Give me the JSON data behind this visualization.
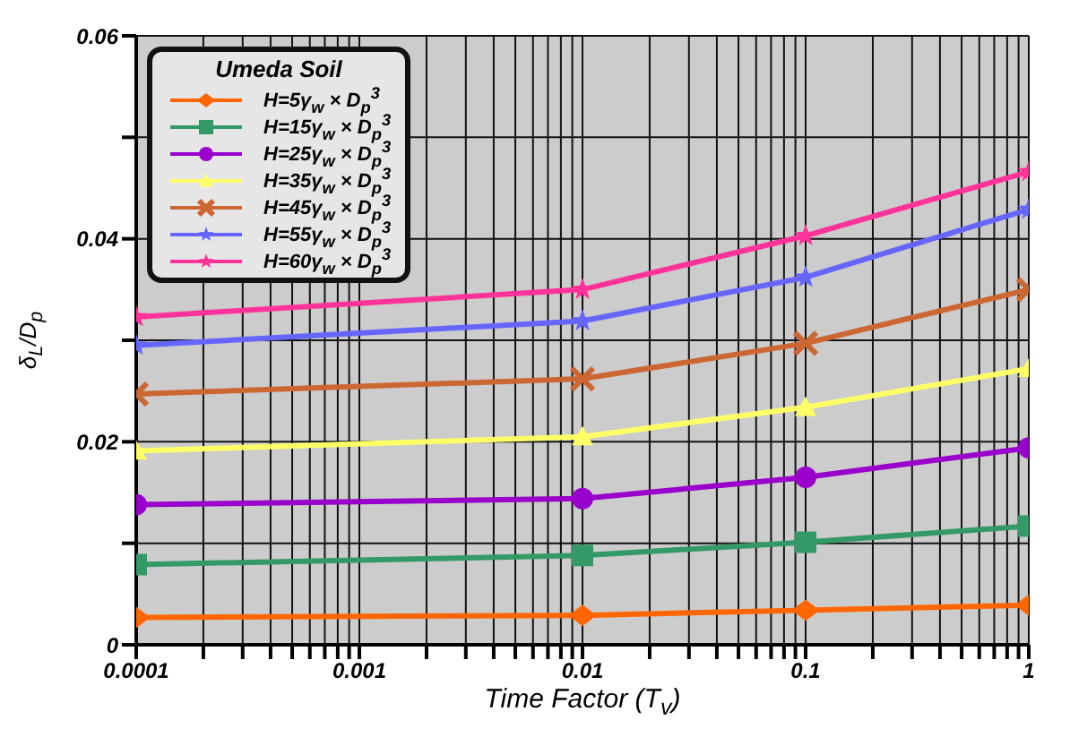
{
  "chart_data": {
    "type": "line",
    "xlabel": "Time Factor (T$_{v}$)",
    "ylabel": "δ$_{L}$/D$_{p}$",
    "legend_title": "Umeda Soil",
    "log": "x",
    "grid": true,
    "legend": "top left",
    "x": [
      0.0001,
      0.01,
      0.1,
      1
    ],
    "xlim": [
      0.0001,
      1
    ],
    "xticks": [
      {
        "value": 0.0001,
        "label": "0.0001"
      },
      {
        "value": 0.0002,
        "label": null
      },
      {
        "value": 0.0003,
        "label": null
      },
      {
        "value": 0.0004,
        "label": null
      },
      {
        "value": 0.0005,
        "label": null
      },
      {
        "value": 0.0006,
        "label": null
      },
      {
        "value": 0.0007,
        "label": null
      },
      {
        "value": 0.0008,
        "label": null
      },
      {
        "value": 0.0009,
        "label": null
      },
      {
        "value": 0.001,
        "label": "0.001"
      },
      {
        "value": 0.002,
        "label": null
      },
      {
        "value": 0.003,
        "label": null
      },
      {
        "value": 0.004,
        "label": null
      },
      {
        "value": 0.005,
        "label": null
      },
      {
        "value": 0.006,
        "label": null
      },
      {
        "value": 0.007,
        "label": null
      },
      {
        "value": 0.008,
        "label": null
      },
      {
        "value": 0.009,
        "label": null
      },
      {
        "value": 0.01,
        "label": "0.01"
      },
      {
        "value": 0.02,
        "label": null
      },
      {
        "value": 0.03,
        "label": null
      },
      {
        "value": 0.04,
        "label": null
      },
      {
        "value": 0.05,
        "label": null
      },
      {
        "value": 0.06,
        "label": null
      },
      {
        "value": 0.07,
        "label": null
      },
      {
        "value": 0.08,
        "label": null
      },
      {
        "value": 0.09,
        "label": null
      },
      {
        "value": 0.1,
        "label": "0.1"
      },
      {
        "value": 0.2,
        "label": null
      },
      {
        "value": 0.3,
        "label": null
      },
      {
        "value": 0.4,
        "label": null
      },
      {
        "value": 0.5,
        "label": null
      },
      {
        "value": 0.6,
        "label": null
      },
      {
        "value": 0.7,
        "label": null
      },
      {
        "value": 0.8,
        "label": null
      },
      {
        "value": 0.9,
        "label": null
      },
      {
        "value": 1,
        "label": "1"
      }
    ],
    "ylim": [
      0,
      0.06
    ],
    "yticks": [
      0,
      {
        "value": 0.01,
        "label": null
      },
      0.02,
      {
        "value": 0.03,
        "label": null
      },
      0.04,
      {
        "value": 0.05,
        "label": null
      },
      0.06
    ],
    "series": [
      {
        "name": "H=5γ$_{w}$ × D$_{p}$$^{3}$",
        "color": "#ff6600",
        "marker": "diamond",
        "values": [
          0.0027,
          0.0029,
          0.0034,
          0.0039
        ]
      },
      {
        "name": "H=15γ$_{w}$ × D$_{p}$$^{3}$",
        "color": "#339966",
        "marker": "square",
        "values": [
          0.0079,
          0.0088,
          0.0101,
          0.0117
        ]
      },
      {
        "name": "H=25γ$_{w}$ × D$_{p}$$^{3}$",
        "color": "#9900cc",
        "marker": "circle",
        "values": [
          0.0138,
          0.0144,
          0.0165,
          0.0194
        ]
      },
      {
        "name": "H=35γ$_{w}$ × D$_{p}$$^{3}$",
        "color": "#ffff66",
        "marker": "triangle",
        "values": [
          0.0191,
          0.0205,
          0.0234,
          0.0272
        ]
      },
      {
        "name": "H=45γ$_{w}$ × D$_{p}$$^{3}$",
        "color": "#cc6633",
        "marker": "cross",
        "values": [
          0.0247,
          0.0262,
          0.0297,
          0.035
        ]
      },
      {
        "name": "H=55γ$_{w}$ × D$_{p}$$^{3}$",
        "color": "#6666ff",
        "marker": "star",
        "values": [
          0.0295,
          0.0319,
          0.0362,
          0.0429
        ]
      },
      {
        "name": "H=60γ$_{w}$ × D$_{p}$$^{3}$",
        "color": "#ff3399",
        "marker": "star",
        "values": [
          0.0323,
          0.035,
          0.0403,
          0.0466
        ]
      }
    ]
  }
}
